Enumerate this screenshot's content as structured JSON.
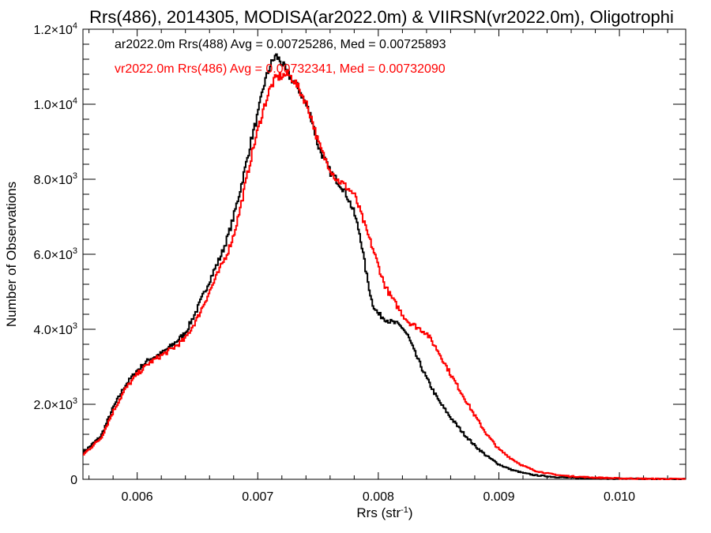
{
  "chart_data": {
    "type": "line",
    "title": "Rrs(486), 2014305, MODISA(ar2022.0m) & VIIRSN(vr2022.0m), Oligotrophi",
    "xlabel": "Rrs (str",
    "xlabel_sup": "-1",
    "xlabel_end": ")",
    "ylabel": "Number of Observations",
    "xlim": [
      0.00555,
      0.01055
    ],
    "ylim": [
      0,
      12000
    ],
    "x_ticks": [
      {
        "value": 0.006,
        "label": "0.006"
      },
      {
        "value": 0.007,
        "label": "0.007"
      },
      {
        "value": 0.008,
        "label": "0.008"
      },
      {
        "value": 0.009,
        "label": "0.009"
      },
      {
        "value": 0.01,
        "label": "0.010"
      }
    ],
    "y_ticks": [
      {
        "value": 0,
        "mant": "0",
        "exp": ""
      },
      {
        "value": 2000,
        "mant": "2.0×10",
        "exp": "3"
      },
      {
        "value": 4000,
        "mant": "4.0×10",
        "exp": "3"
      },
      {
        "value": 6000,
        "mant": "6.0×10",
        "exp": "3"
      },
      {
        "value": 8000,
        "mant": "8.0×10",
        "exp": "3"
      },
      {
        "value": 10000,
        "mant": "1.0×10",
        "exp": "4"
      },
      {
        "value": 12000,
        "mant": "1.2×10",
        "exp": "4"
      }
    ],
    "series": [
      {
        "name": "ar2022.0m Rrs(488) Avg = 0.00725286, Med = 0.00725893",
        "color": "#000000",
        "x": [
          0.00555,
          0.0057,
          0.0058,
          0.0059,
          0.006,
          0.0061,
          0.0062,
          0.0063,
          0.0064,
          0.0065,
          0.0066,
          0.0067,
          0.00675,
          0.0068,
          0.00685,
          0.0069,
          0.00695,
          0.007,
          0.00705,
          0.0071,
          0.00715,
          0.0072,
          0.00725,
          0.0073,
          0.00735,
          0.0074,
          0.00745,
          0.0075,
          0.00755,
          0.0076,
          0.00765,
          0.0077,
          0.00775,
          0.0078,
          0.00785,
          0.0079,
          0.00795,
          0.008,
          0.00805,
          0.0081,
          0.00815,
          0.0082,
          0.00825,
          0.0083,
          0.0084,
          0.0085,
          0.0086,
          0.0087,
          0.0088,
          0.0089,
          0.009,
          0.0091,
          0.0092,
          0.0093,
          0.0094,
          0.0095,
          0.0096,
          0.0098,
          0.01,
          0.0102,
          0.01055
        ],
        "y": [
          700,
          1150,
          1900,
          2500,
          2900,
          3200,
          3350,
          3600,
          3900,
          4550,
          5300,
          6000,
          6450,
          7000,
          7650,
          8350,
          9100,
          9700,
          10500,
          11000,
          11300,
          11100,
          10800,
          10600,
          10350,
          10000,
          9600,
          8900,
          8550,
          8200,
          8000,
          7800,
          7500,
          7100,
          6500,
          5500,
          4700,
          4400,
          4300,
          4200,
          4150,
          4050,
          3800,
          3400,
          2700,
          2100,
          1650,
          1250,
          900,
          620,
          400,
          260,
          170,
          110,
          80,
          55,
          40,
          25,
          15,
          10,
          5
        ]
      },
      {
        "name": "vr2022.0m Rrs(486) Avg = 0.00732341, Med = 0.00732090",
        "color": "#ff0000",
        "x": [
          0.00555,
          0.0057,
          0.0058,
          0.0059,
          0.006,
          0.0061,
          0.0062,
          0.0063,
          0.0064,
          0.0065,
          0.0066,
          0.0067,
          0.00675,
          0.0068,
          0.00685,
          0.0069,
          0.00695,
          0.007,
          0.00705,
          0.0071,
          0.00715,
          0.0072,
          0.00725,
          0.0073,
          0.00735,
          0.0074,
          0.00745,
          0.0075,
          0.00755,
          0.0076,
          0.00765,
          0.0077,
          0.00775,
          0.0078,
          0.00785,
          0.0079,
          0.00795,
          0.008,
          0.00805,
          0.0081,
          0.00815,
          0.0082,
          0.00825,
          0.0083,
          0.0084,
          0.0085,
          0.0086,
          0.0087,
          0.0088,
          0.0089,
          0.009,
          0.0091,
          0.0092,
          0.0093,
          0.0094,
          0.0095,
          0.0096,
          0.0098,
          0.01,
          0.0102,
          0.01055
        ],
        "y": [
          650,
          1100,
          1800,
          2400,
          2800,
          3100,
          3300,
          3500,
          3750,
          4300,
          5000,
          5700,
          6050,
          6500,
          7150,
          7900,
          8650,
          9300,
          9900,
          10400,
          10700,
          10750,
          10800,
          10650,
          10350,
          10050,
          9600,
          9000,
          8600,
          8300,
          8000,
          7900,
          7750,
          7600,
          7150,
          6650,
          6200,
          5700,
          5200,
          4900,
          4650,
          4400,
          4200,
          4100,
          3900,
          3400,
          2800,
          2250,
          1700,
          1200,
          800,
          560,
          360,
          230,
          160,
          110,
          80,
          45,
          25,
          15,
          8
        ]
      }
    ]
  }
}
